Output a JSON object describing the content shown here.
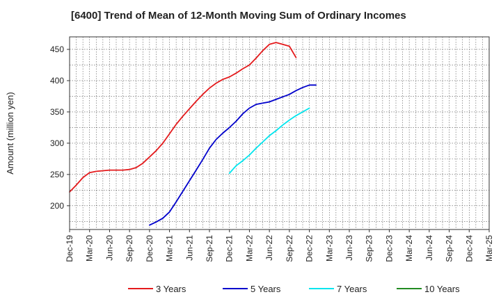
{
  "chart_data": {
    "type": "line",
    "title": "[6400]  Trend of Mean of 12-Month Moving Sum of Ordinary Incomes",
    "xlabel": "",
    "ylabel": "Amount (million yen)",
    "ylim": [
      162,
      470
    ],
    "y_ticks": [
      200,
      250,
      300,
      350,
      400,
      450
    ],
    "x_ticks": [
      "Dec-19",
      "Mar-20",
      "Jun-20",
      "Sep-20",
      "Dec-20",
      "Mar-21",
      "Jun-21",
      "Sep-21",
      "Dec-21",
      "Mar-22",
      "Jun-22",
      "Sep-22",
      "Dec-22",
      "Mar-23",
      "Jun-23",
      "Sep-23",
      "Dec-23",
      "Mar-24",
      "Jun-24",
      "Sep-24",
      "Dec-24",
      "Mar-25"
    ],
    "grid": true,
    "legend_position": "bottom",
    "series": [
      {
        "name": "3 Years",
        "color": "#e41a1c",
        "start_index": 0,
        "values": [
          222,
          233,
          245,
          253,
          255,
          256,
          257,
          257,
          257,
          258,
          261,
          268,
          278,
          288,
          300,
          315,
          330,
          343,
          355,
          367,
          378,
          388,
          396,
          402,
          406,
          412,
          419,
          425,
          436,
          448,
          458,
          461,
          458,
          455,
          437
        ]
      },
      {
        "name": "5 Years",
        "color": "#0000cc",
        "start_index": 12,
        "values": [
          169,
          174,
          180,
          190,
          206,
          223,
          240,
          257,
          274,
          292,
          306,
          316,
          325,
          335,
          347,
          356,
          362,
          364,
          366,
          370,
          374,
          378,
          384,
          389,
          393,
          393
        ]
      },
      {
        "name": "7 Years",
        "color": "#00e5ee",
        "start_index": 24,
        "values": [
          252,
          264,
          272,
          281,
          292,
          302,
          312,
          320,
          329,
          337,
          344,
          350,
          356
        ]
      },
      {
        "name": "10 Years",
        "color": "#228b22",
        "start_index": 0,
        "values": []
      }
    ]
  }
}
